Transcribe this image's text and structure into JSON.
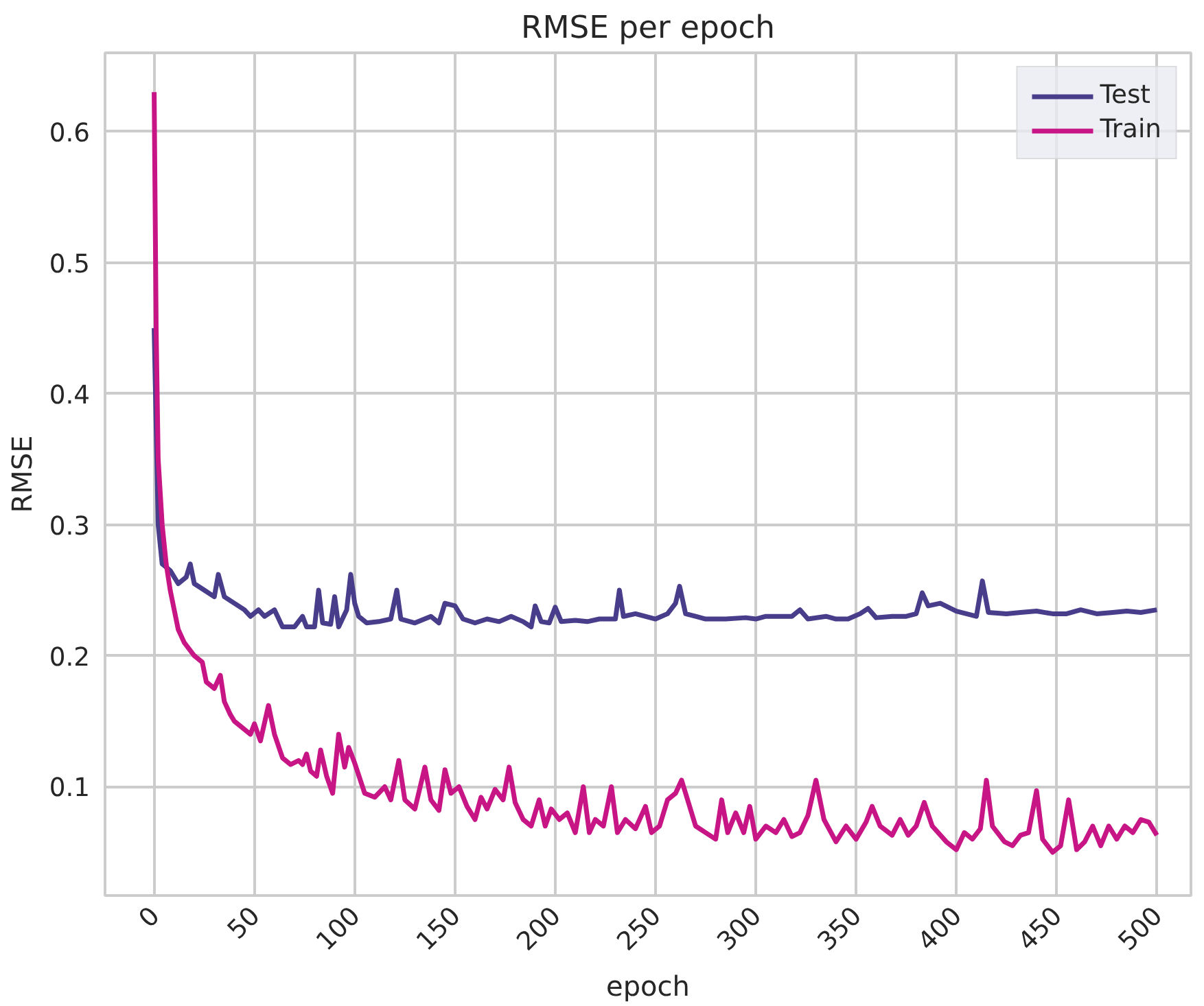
{
  "chart_data": {
    "type": "line",
    "title": "RMSE per epoch",
    "xlabel": "epoch",
    "ylabel": "RMSE",
    "xlim": [
      -24.5,
      517
    ],
    "ylim": [
      0.017,
      0.66
    ],
    "xticks": [
      0,
      50,
      100,
      150,
      200,
      250,
      300,
      350,
      400,
      450,
      500
    ],
    "yticks": [
      0.1,
      0.2,
      0.3,
      0.4,
      0.5,
      0.6
    ],
    "grid": true,
    "legend": "top right",
    "line_style": "solid",
    "marker": "none",
    "series": [
      {
        "name": "Test",
        "color": "#483d8b",
        "x": [
          0,
          2,
          4,
          8,
          12,
          16,
          18,
          20,
          25,
          30,
          32,
          35,
          40,
          45,
          48,
          52,
          55,
          60,
          64,
          70,
          74,
          76,
          80,
          82,
          84,
          88,
          90,
          92,
          96,
          98,
          100,
          102,
          106,
          112,
          118,
          121,
          123,
          130,
          138,
          142,
          145,
          150,
          154,
          160,
          166,
          172,
          178,
          184,
          188,
          190,
          193,
          197,
          200,
          203,
          210,
          216,
          222,
          226,
          230,
          232,
          234,
          240,
          250,
          256,
          260,
          262,
          265,
          275,
          285,
          295,
          300,
          305,
          310,
          318,
          322,
          326,
          335,
          340,
          346,
          352,
          356,
          360,
          368,
          375,
          380,
          383,
          386,
          392,
          400,
          405,
          410,
          413,
          416,
          425,
          432,
          440,
          448,
          455,
          462,
          470,
          478,
          485,
          492,
          500
        ],
        "values": [
          0.45,
          0.3,
          0.27,
          0.265,
          0.255,
          0.26,
          0.27,
          0.255,
          0.25,
          0.245,
          0.262,
          0.245,
          0.24,
          0.235,
          0.23,
          0.235,
          0.23,
          0.235,
          0.222,
          0.222,
          0.23,
          0.222,
          0.222,
          0.25,
          0.225,
          0.224,
          0.245,
          0.222,
          0.235,
          0.262,
          0.24,
          0.23,
          0.225,
          0.226,
          0.228,
          0.25,
          0.228,
          0.225,
          0.23,
          0.225,
          0.24,
          0.238,
          0.228,
          0.225,
          0.228,
          0.226,
          0.23,
          0.226,
          0.222,
          0.238,
          0.226,
          0.225,
          0.237,
          0.226,
          0.227,
          0.226,
          0.228,
          0.228,
          0.228,
          0.25,
          0.23,
          0.232,
          0.228,
          0.232,
          0.24,
          0.253,
          0.232,
          0.228,
          0.228,
          0.229,
          0.228,
          0.23,
          0.23,
          0.23,
          0.235,
          0.228,
          0.23,
          0.228,
          0.228,
          0.232,
          0.236,
          0.229,
          0.23,
          0.23,
          0.232,
          0.248,
          0.238,
          0.24,
          0.234,
          0.232,
          0.23,
          0.257,
          0.233,
          0.232,
          0.233,
          0.234,
          0.232,
          0.232,
          0.235,
          0.232,
          0.233,
          0.234,
          0.233,
          0.235
        ]
      },
      {
        "name": "Train",
        "color": "#c71585",
        "x": [
          0,
          1,
          2,
          4,
          6,
          8,
          10,
          12,
          15,
          20,
          24,
          26,
          30,
          33,
          35,
          38,
          40,
          44,
          48,
          50,
          53,
          57,
          60,
          64,
          68,
          72,
          74,
          76,
          78,
          81,
          83,
          86,
          89,
          92,
          95,
          97,
          100,
          105,
          110,
          115,
          118,
          122,
          125,
          130,
          135,
          138,
          142,
          145,
          148,
          152,
          156,
          160,
          163,
          166,
          170,
          174,
          177,
          180,
          184,
          188,
          192,
          195,
          198,
          202,
          206,
          210,
          214,
          217,
          220,
          224,
          228,
          231,
          235,
          240,
          245,
          248,
          252,
          256,
          260,
          263,
          266,
          270,
          275,
          280,
          283,
          286,
          290,
          294,
          297,
          300,
          305,
          310,
          314,
          318,
          322,
          326,
          330,
          334,
          340,
          345,
          350,
          355,
          358,
          362,
          368,
          372,
          376,
          380,
          384,
          388,
          395,
          400,
          404,
          408,
          412,
          415,
          418,
          424,
          428,
          432,
          436,
          440,
          443,
          448,
          452,
          456,
          460,
          464,
          468,
          472,
          476,
          480,
          484,
          488,
          492,
          496,
          500
        ],
        "values": [
          0.63,
          0.45,
          0.35,
          0.3,
          0.27,
          0.25,
          0.235,
          0.22,
          0.21,
          0.2,
          0.195,
          0.18,
          0.175,
          0.185,
          0.165,
          0.155,
          0.15,
          0.145,
          0.14,
          0.148,
          0.135,
          0.162,
          0.14,
          0.122,
          0.117,
          0.12,
          0.117,
          0.125,
          0.112,
          0.108,
          0.128,
          0.108,
          0.095,
          0.14,
          0.115,
          0.13,
          0.118,
          0.095,
          0.092,
          0.1,
          0.09,
          0.12,
          0.09,
          0.083,
          0.115,
          0.09,
          0.082,
          0.113,
          0.095,
          0.1,
          0.085,
          0.075,
          0.092,
          0.083,
          0.098,
          0.09,
          0.115,
          0.088,
          0.075,
          0.07,
          0.09,
          0.07,
          0.083,
          0.075,
          0.08,
          0.065,
          0.1,
          0.065,
          0.075,
          0.07,
          0.1,
          0.065,
          0.075,
          0.068,
          0.085,
          0.065,
          0.07,
          0.09,
          0.095,
          0.105,
          0.09,
          0.07,
          0.065,
          0.06,
          0.09,
          0.065,
          0.08,
          0.065,
          0.085,
          0.06,
          0.07,
          0.065,
          0.075,
          0.062,
          0.065,
          0.078,
          0.105,
          0.075,
          0.058,
          0.07,
          0.06,
          0.073,
          0.085,
          0.07,
          0.063,
          0.075,
          0.063,
          0.07,
          0.088,
          0.07,
          0.058,
          0.052,
          0.065,
          0.06,
          0.068,
          0.105,
          0.07,
          0.058,
          0.055,
          0.063,
          0.065,
          0.097,
          0.06,
          0.05,
          0.055,
          0.09,
          0.052,
          0.058,
          0.07,
          0.055,
          0.07,
          0.06,
          0.07,
          0.065,
          0.075,
          0.073,
          0.063
        ]
      }
    ]
  }
}
